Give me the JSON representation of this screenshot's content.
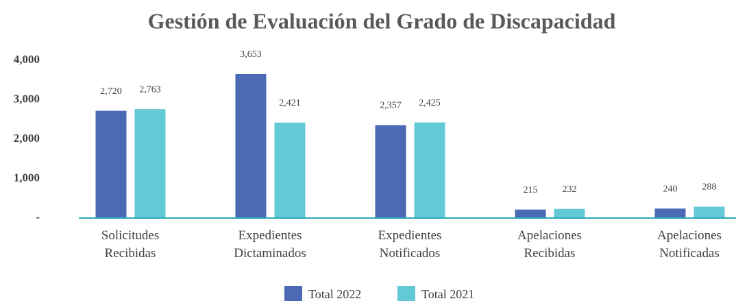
{
  "chart_data": {
    "type": "bar",
    "title": "Gestión de Evaluación del Grado de Discapacidad",
    "categories": [
      "Solicitudes Recibidas",
      "Expedientes Dictaminados",
      "Expedientes Notificados",
      "Apelaciones Recibidas",
      "Apelaciones Notificadas"
    ],
    "series": [
      {
        "name": "Total 2022",
        "color": "#4a6ab5",
        "values": [
          2720,
          3653,
          2357,
          215,
          240
        ],
        "value_labels": [
          "2,720",
          "3,653",
          "2,357",
          "215",
          "240"
        ]
      },
      {
        "name": "Total 2021",
        "color": "#63c9d6",
        "values": [
          2763,
          2421,
          2425,
          232,
          288
        ],
        "value_labels": [
          "2,763",
          "2,421",
          "2,425",
          "232",
          "288"
        ]
      }
    ],
    "ylim": [
      0,
      4000
    ],
    "yticks": [
      {
        "value": 0,
        "label": "-"
      },
      {
        "value": 1000,
        "label": "1,000"
      },
      {
        "value": 2000,
        "label": "2,000"
      },
      {
        "value": 3000,
        "label": "3,000"
      },
      {
        "value": 4000,
        "label": "4,000"
      }
    ],
    "grid": false,
    "legend": "bottom"
  }
}
